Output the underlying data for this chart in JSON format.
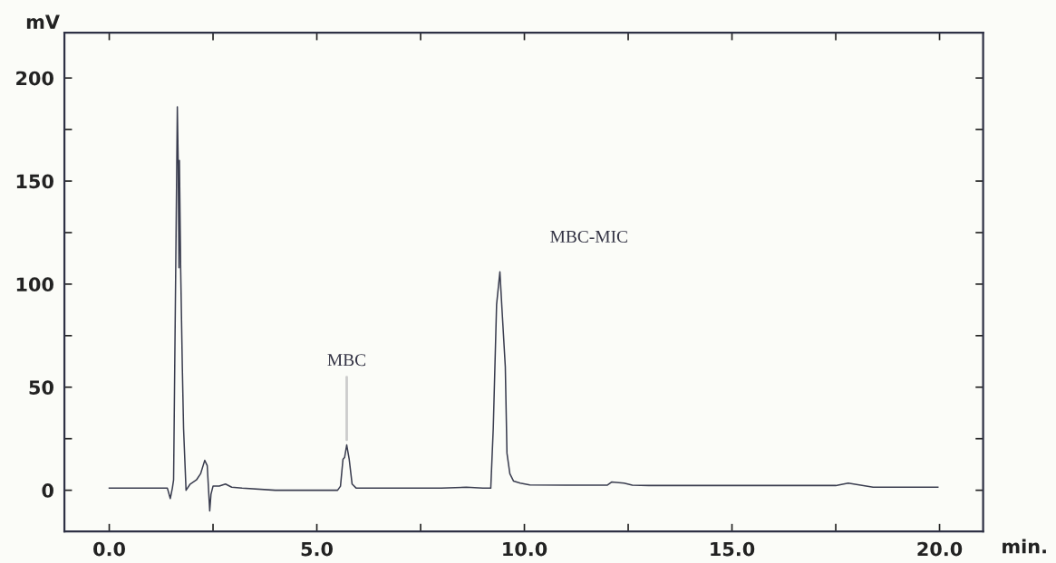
{
  "chart_data": {
    "type": "line",
    "xlabel": "min.",
    "ylabel": "mV",
    "x": [
      0.0,
      1.4,
      1.47,
      1.52,
      1.55,
      1.6,
      1.64,
      1.66,
      1.68,
      1.69,
      1.72,
      1.76,
      1.79,
      1.85,
      1.95,
      2.1,
      2.2,
      2.3,
      2.36,
      2.42,
      2.45,
      2.5,
      2.65,
      2.8,
      2.95,
      3.2,
      4.0,
      5.0,
      5.5,
      5.57,
      5.63,
      5.67,
      5.72,
      5.78,
      5.85,
      5.95,
      6.05,
      7.0,
      8.0,
      8.6,
      9.0,
      9.19,
      9.25,
      9.33,
      9.41,
      9.46,
      9.54,
      9.58,
      9.65,
      9.74,
      9.9,
      10.13,
      11.0,
      12.0,
      12.1,
      12.4,
      12.6,
      13.0,
      15.0,
      17.5,
      17.8,
      18.1,
      18.4,
      19.0,
      19.96
    ],
    "series": [
      {
        "color": "#3a3d4f",
        "values": [
          1,
          1,
          -4,
          1,
          5,
          105,
          186,
          160,
          108,
          160,
          108,
          60,
          30,
          0,
          3,
          5,
          8,
          14.5,
          12,
          -10,
          -2,
          2,
          2,
          3,
          1.5,
          1,
          0,
          0,
          0,
          2,
          15,
          16,
          22,
          15,
          3,
          1,
          1,
          1,
          1,
          1.5,
          1,
          1,
          30,
          90,
          106,
          88,
          60,
          18,
          8,
          4.4,
          3.5,
          2.6,
          2.5,
          2.5,
          4,
          3.5,
          2.5,
          2.3,
          2.3,
          2.3,
          3.5,
          2.5,
          1.5,
          1.5,
          1.5
        ]
      }
    ],
    "xlim": [
      -1.08,
      21.05
    ],
    "ylim": [
      -20,
      222
    ],
    "xticks": [
      {
        "value": 0,
        "label": "0.0"
      },
      {
        "value": 2.5,
        "label": null
      },
      {
        "value": 5,
        "label": "5.0"
      },
      {
        "value": 7.5,
        "label": null
      },
      {
        "value": 10,
        "label": "10.0"
      },
      {
        "value": 12.5,
        "label": null
      },
      {
        "value": 15,
        "label": "15.0"
      },
      {
        "value": 17.5,
        "label": null
      },
      {
        "value": 20,
        "label": "20.0"
      }
    ],
    "yticks": [
      0,
      {
        "value": 25,
        "label": null
      },
      50,
      {
        "value": 75,
        "label": null
      },
      100,
      {
        "value": 125,
        "label": null
      },
      150,
      {
        "value": 175,
        "label": null
      },
      200
    ],
    "annotations": [
      {
        "text": "MBC",
        "x": 5.72,
        "y": 22
      },
      "MBC-MIC"
    ],
    "grid": false,
    "legend": false,
    "line_style": "solid",
    "marker": "none"
  }
}
